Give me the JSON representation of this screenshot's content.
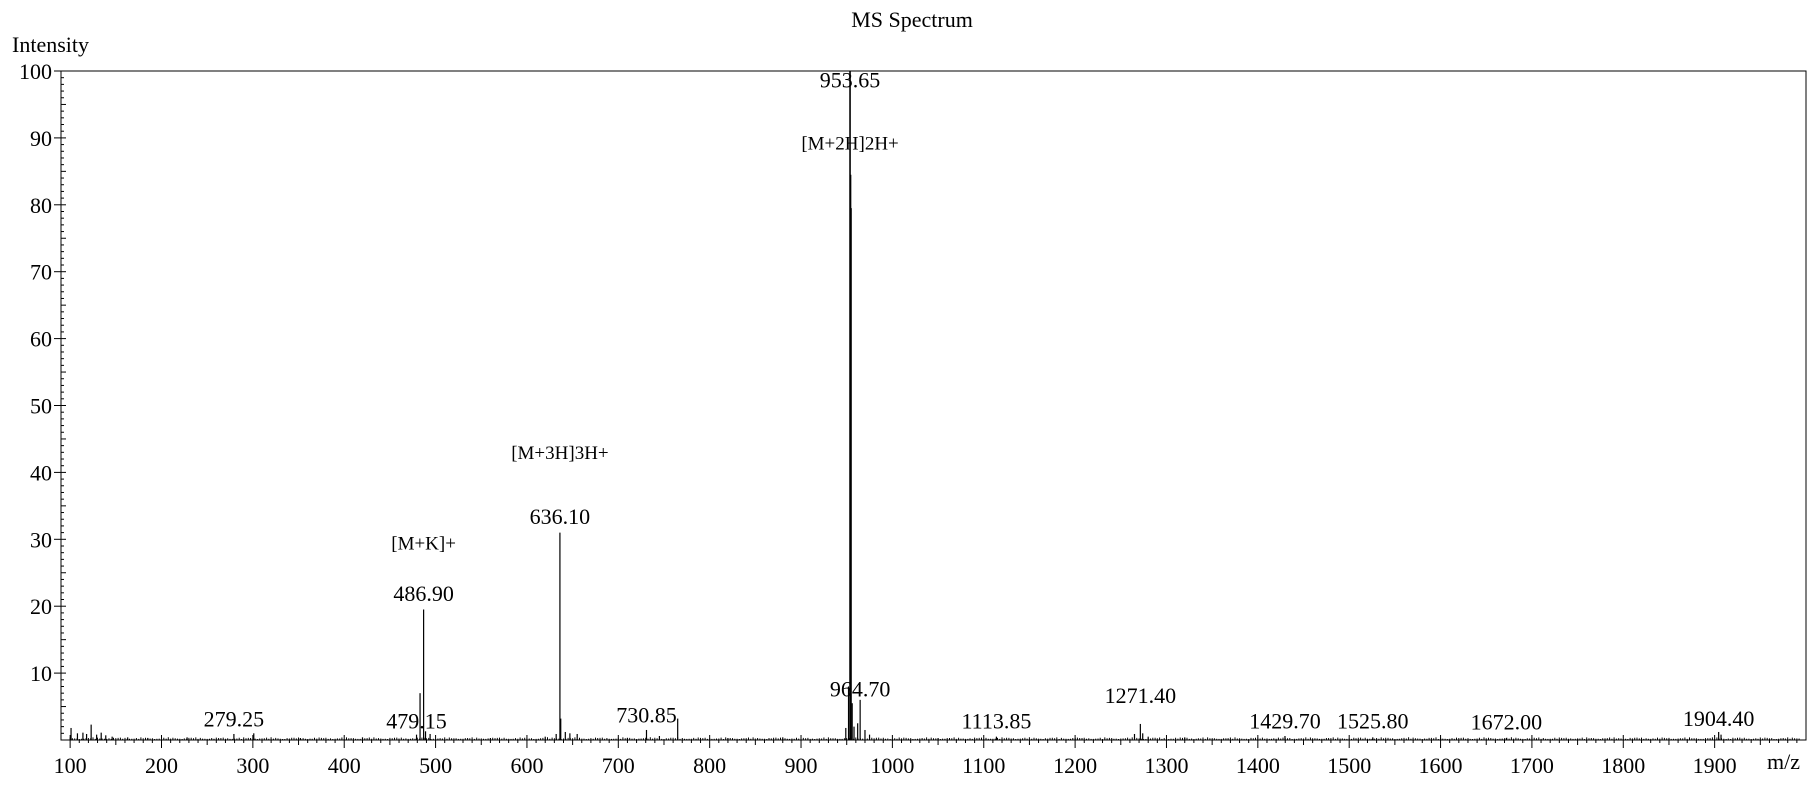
{
  "chart_data": {
    "type": "bar",
    "title": "MS Spectrum",
    "xlabel": "m/z",
    "ylabel": "Intensity",
    "xlim": [
      90,
      2000
    ],
    "ylim": [
      0,
      100
    ],
    "x_ticks": [
      100,
      200,
      300,
      400,
      500,
      600,
      700,
      800,
      900,
      1000,
      1100,
      1200,
      1300,
      1400,
      1500,
      1600,
      1700,
      1800,
      1900
    ],
    "y_ticks": [
      10,
      20,
      30,
      40,
      50,
      60,
      70,
      80,
      90,
      100
    ],
    "grid": false,
    "legend": "none",
    "peaks": [
      {
        "mz": 101,
        "intensity": 1.8
      },
      {
        "mz": 108,
        "intensity": 1.0
      },
      {
        "mz": 114,
        "intensity": 1.1
      },
      {
        "mz": 118,
        "intensity": 0.9
      },
      {
        "mz": 123,
        "intensity": 2.3
      },
      {
        "mz": 129,
        "intensity": 0.8
      },
      {
        "mz": 134,
        "intensity": 1.1
      },
      {
        "mz": 139,
        "intensity": 0.7
      },
      {
        "mz": 146,
        "intensity": 0.5
      },
      {
        "mz": 163,
        "intensity": 0.4
      },
      {
        "mz": 185,
        "intensity": 0.3
      },
      {
        "mz": 228,
        "intensity": 0.4
      },
      {
        "mz": 279.25,
        "intensity": 0.9
      },
      {
        "mz": 301,
        "intensity": 1.0
      },
      {
        "mz": 352,
        "intensity": 0.3
      },
      {
        "mz": 420,
        "intensity": 0.4
      },
      {
        "mz": 479.15,
        "intensity": 0.8
      },
      {
        "mz": 483,
        "intensity": 7.0
      },
      {
        "mz": 486.9,
        "intensity": 19.5
      },
      {
        "mz": 489,
        "intensity": 1.3
      },
      {
        "mz": 494,
        "intensity": 0.9
      },
      {
        "mz": 560,
        "intensity": 0.3
      },
      {
        "mz": 620,
        "intensity": 0.5
      },
      {
        "mz": 632,
        "intensity": 0.9
      },
      {
        "mz": 636.1,
        "intensity": 31.0
      },
      {
        "mz": 637,
        "intensity": 3.2
      },
      {
        "mz": 642,
        "intensity": 1.2
      },
      {
        "mz": 647,
        "intensity": 1.0
      },
      {
        "mz": 655,
        "intensity": 0.9
      },
      {
        "mz": 710,
        "intensity": 0.3
      },
      {
        "mz": 730.85,
        "intensity": 1.5
      },
      {
        "mz": 745,
        "intensity": 0.6
      },
      {
        "mz": 765,
        "intensity": 3.2
      },
      {
        "mz": 820,
        "intensity": 0.3
      },
      {
        "mz": 880,
        "intensity": 0.4
      },
      {
        "mz": 949,
        "intensity": 1.8
      },
      {
        "mz": 952,
        "intensity": 8.0
      },
      {
        "mz": 953.65,
        "intensity": 100.0
      },
      {
        "mz": 954.2,
        "intensity": 84.5
      },
      {
        "mz": 954.7,
        "intensity": 79.5
      },
      {
        "mz": 956,
        "intensity": 5.5
      },
      {
        "mz": 958,
        "intensity": 2.0
      },
      {
        "mz": 962,
        "intensity": 2.5
      },
      {
        "mz": 964.7,
        "intensity": 6.0
      },
      {
        "mz": 970,
        "intensity": 1.5
      },
      {
        "mz": 975,
        "intensity": 0.8
      },
      {
        "mz": 1050,
        "intensity": 0.3
      },
      {
        "mz": 1113.85,
        "intensity": 0.5
      },
      {
        "mz": 1200,
        "intensity": 0.3
      },
      {
        "mz": 1265,
        "intensity": 0.9
      },
      {
        "mz": 1271.4,
        "intensity": 2.4
      },
      {
        "mz": 1274,
        "intensity": 1.0
      },
      {
        "mz": 1280,
        "intensity": 0.5
      },
      {
        "mz": 1320,
        "intensity": 0.4
      },
      {
        "mz": 1429.7,
        "intensity": 0.6
      },
      {
        "mz": 1525.8,
        "intensity": 0.4
      },
      {
        "mz": 1600,
        "intensity": 0.2
      },
      {
        "mz": 1672.0,
        "intensity": 0.3
      },
      {
        "mz": 1750,
        "intensity": 0.2
      },
      {
        "mz": 1850,
        "intensity": 0.2
      },
      {
        "mz": 1904.4,
        "intensity": 1.2
      },
      {
        "mz": 1907,
        "intensity": 0.8
      }
    ],
    "annotations": [
      {
        "text": "953.65",
        "mz": 953.65,
        "y": 97.5
      },
      {
        "text": "[M+2H]2H+",
        "mz": 953.65,
        "y": 88.3
      },
      {
        "text": "[M+3H]3H+",
        "mz": 636.1,
        "y": 42.0
      },
      {
        "text": "636.10",
        "mz": 636.1,
        "y": 32.3
      },
      {
        "text": "[M+K]+",
        "mz": 486.9,
        "y": 28.5
      },
      {
        "text": "486.90",
        "mz": 486.9,
        "y": 20.8
      },
      {
        "text": "964.70",
        "mz": 964.7,
        "y": 6.5
      },
      {
        "text": "1271.40",
        "mz": 1271.4,
        "y": 5.5
      },
      {
        "text": "730.85",
        "mz": 730.85,
        "y": 2.6
      },
      {
        "text": "279.25",
        "mz": 279.25,
        "y": 2.0
      },
      {
        "text": "479.15",
        "mz": 479.15,
        "y": 1.7
      },
      {
        "text": "1113.85",
        "mz": 1113.85,
        "y": 1.7
      },
      {
        "text": "1429.70",
        "mz": 1429.7,
        "y": 1.7
      },
      {
        "text": "1525.80",
        "mz": 1525.8,
        "y": 1.7
      },
      {
        "text": "1672.00",
        "mz": 1672.0,
        "y": 1.6
      },
      {
        "text": "1904.40",
        "mz": 1904.4,
        "y": 2.1
      }
    ],
    "colors": {
      "bars": "#000000",
      "axes": "#000000",
      "background": "#ffffff"
    }
  }
}
